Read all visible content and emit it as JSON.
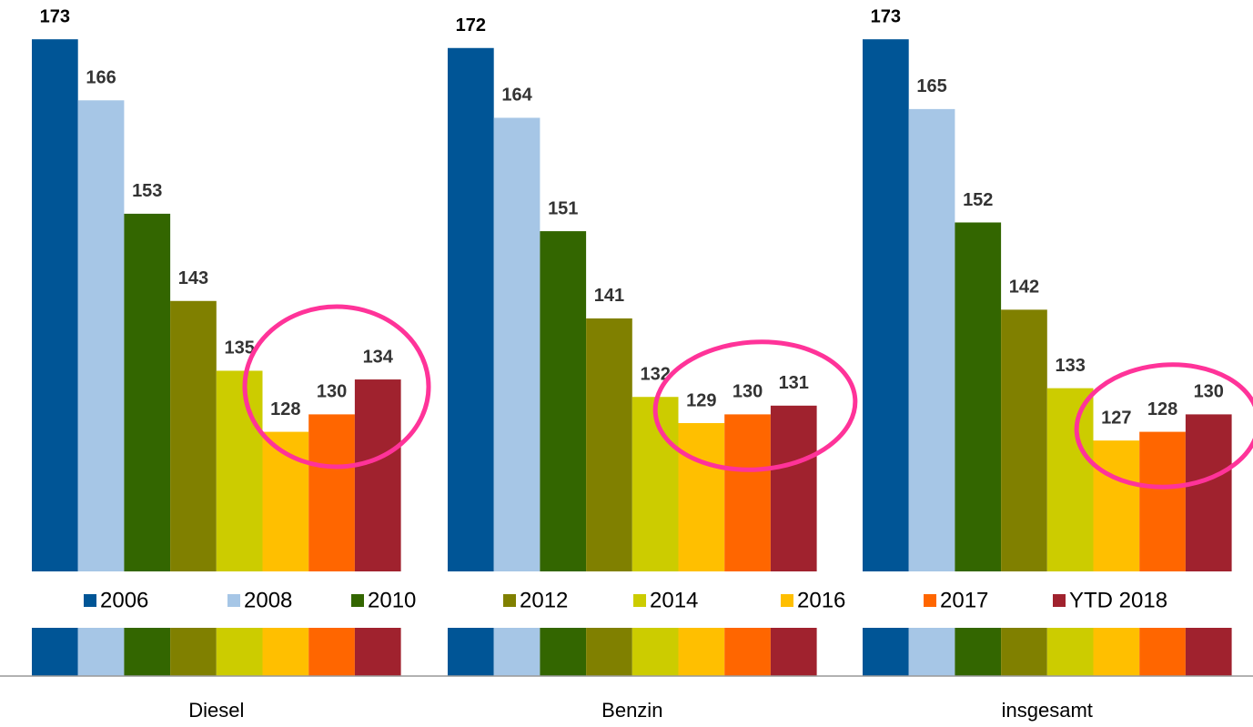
{
  "chart_data": {
    "type": "bar",
    "categories": [
      "Diesel",
      "Benzin",
      "insgesamt"
    ],
    "series": [
      {
        "name": "2006",
        "color": "#005596",
        "values": [
          173,
          172,
          173
        ]
      },
      {
        "name": "2008",
        "color": "#a6c6e6",
        "values": [
          166,
          164,
          165
        ]
      },
      {
        "name": "2010",
        "color": "#336600",
        "values": [
          153,
          151,
          152
        ]
      },
      {
        "name": "2012",
        "color": "#808000",
        "values": [
          143,
          141,
          142
        ]
      },
      {
        "name": "2014",
        "color": "#cccc00",
        "values": [
          135,
          132,
          133
        ]
      },
      {
        "name": "2016",
        "color": "#ffbf00",
        "values": [
          128,
          129,
          127
        ]
      },
      {
        "name": "2017",
        "color": "#ff6600",
        "values": [
          130,
          130,
          128
        ]
      },
      {
        "name": "YTD 2018",
        "color": "#a0222e",
        "values": [
          134,
          131,
          130
        ]
      }
    ],
    "ylim": [
      100,
      175
    ],
    "legend": "center"
  }
}
